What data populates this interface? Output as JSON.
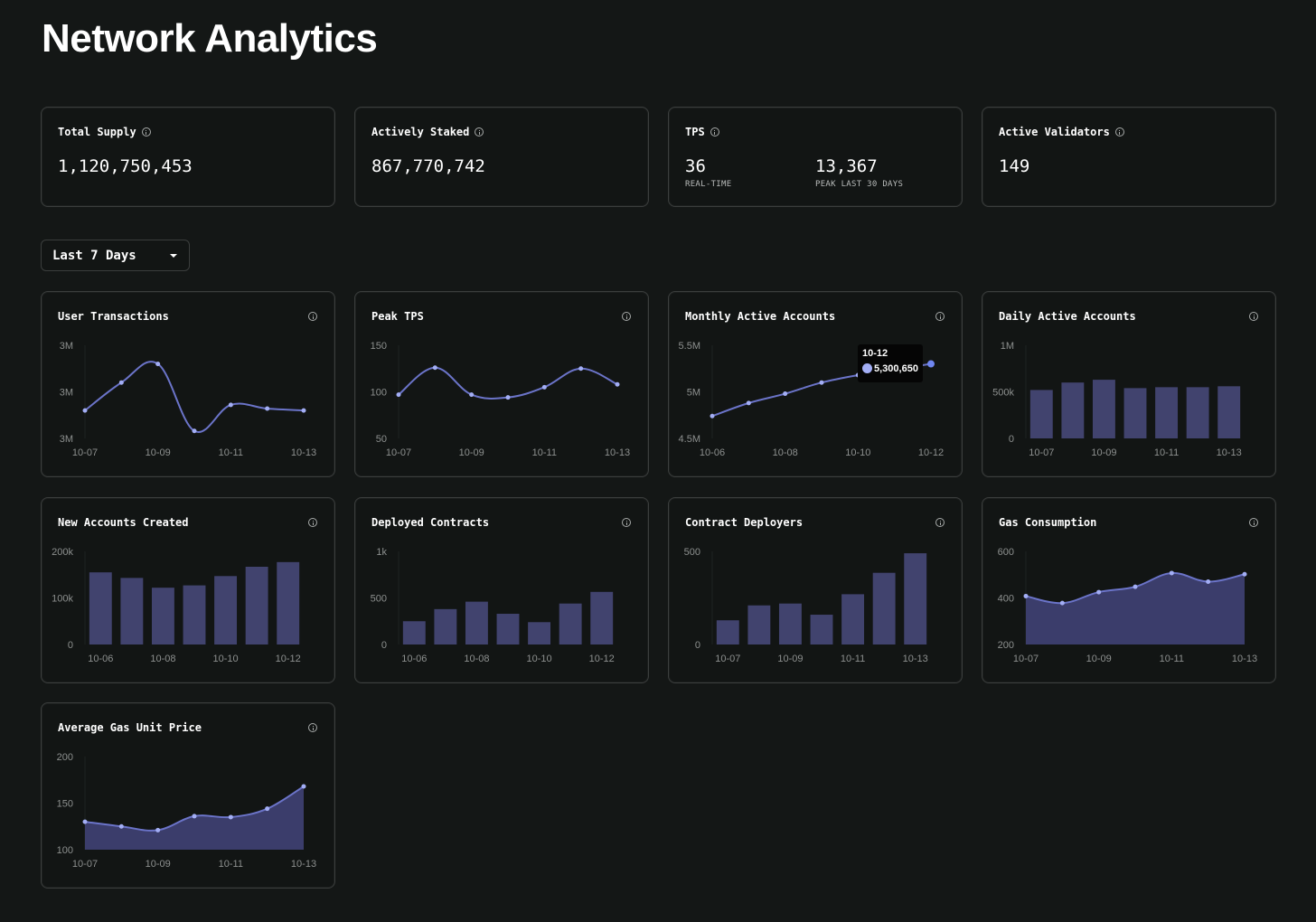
{
  "page": {
    "title": "Network Analytics"
  },
  "stats": {
    "total_supply": {
      "label": "Total Supply",
      "value": "1,120,750,453"
    },
    "actively_staked": {
      "label": "Actively Staked",
      "value": "867,770,742"
    },
    "tps": {
      "label": "TPS",
      "realtime_value": "36",
      "realtime_label": "REAL-TIME",
      "peak_value": "13,367",
      "peak_label": "PEAK LAST 30 DAYS"
    },
    "active_validators": {
      "label": "Active Validators",
      "value": "149"
    }
  },
  "range_selector": {
    "selected": "Last 7 Days"
  },
  "colors": {
    "line": "#6b74c9",
    "point": "#a3aef5",
    "bar": "#41436e",
    "area": "#3b3d6b"
  },
  "icons": {
    "info": "info-icon",
    "dropdown": "chevron-down-icon"
  },
  "tooltip": {
    "date": "10-12",
    "value": "5,300,650"
  },
  "chart_data": [
    {
      "id": "user_transactions",
      "title": "User Transactions",
      "type": "line",
      "x": [
        "10-07",
        "10-08",
        "10-09",
        "10-10",
        "10-11",
        "10-12",
        "10-13"
      ],
      "values": [
        2.9,
        3.05,
        3.15,
        2.79,
        2.93,
        2.91,
        2.9
      ],
      "ylim": [
        2.75,
        3.25
      ],
      "yticks": [
        3.25,
        3.0,
        2.75
      ],
      "ytick_labels": [
        "3M",
        "3M",
        "3M"
      ],
      "xtick_labels": [
        "10-07",
        "10-09",
        "10-11",
        "10-13"
      ]
    },
    {
      "id": "peak_tps",
      "title": "Peak TPS",
      "type": "line",
      "x": [
        "10-07",
        "10-08",
        "10-09",
        "10-10",
        "10-11",
        "10-12",
        "10-13"
      ],
      "values": [
        97,
        126,
        97,
        94,
        105,
        125,
        108
      ],
      "ylim": [
        50,
        150
      ],
      "yticks": [
        150,
        100,
        50
      ],
      "ytick_labels": [
        "150",
        "100",
        "50"
      ],
      "xtick_labels": [
        "10-07",
        "10-09",
        "10-11",
        "10-13"
      ]
    },
    {
      "id": "monthly_active_accounts",
      "title": "Monthly Active Accounts",
      "type": "line",
      "x": [
        "10-06",
        "10-07",
        "10-08",
        "10-09",
        "10-10",
        "10-11",
        "10-12"
      ],
      "values": [
        4.74,
        4.88,
        4.98,
        5.1,
        5.18,
        5.24,
        5.30065
      ],
      "ylim": [
        4.5,
        5.5
      ],
      "yticks": [
        5.5,
        5.0,
        4.5
      ],
      "ytick_labels": [
        "5.5M",
        "5M",
        "4.5M"
      ],
      "xtick_labels": [
        "10-06",
        "10-08",
        "10-10",
        "10-12"
      ]
    },
    {
      "id": "daily_active_accounts",
      "title": "Daily Active Accounts",
      "type": "bar",
      "x": [
        "10-07",
        "10-08",
        "10-09",
        "10-10",
        "10-11",
        "10-12",
        "10-13"
      ],
      "values": [
        520000,
        600000,
        630000,
        540000,
        550000,
        550000,
        560000
      ],
      "ylim": [
        0,
        1000000
      ],
      "yticks": [
        1000000,
        500000,
        0
      ],
      "ytick_labels": [
        "1M",
        "500k",
        "0"
      ],
      "xtick_labels": [
        "10-07",
        "10-09",
        "10-11",
        "10-13"
      ]
    },
    {
      "id": "new_accounts_created",
      "title": "New Accounts Created",
      "type": "bar",
      "x": [
        "10-06",
        "10-07",
        "10-08",
        "10-09",
        "10-10",
        "10-11",
        "10-12"
      ],
      "values": [
        155000,
        143000,
        122000,
        127000,
        147000,
        167000,
        177000
      ],
      "ylim": [
        0,
        200000
      ],
      "yticks": [
        200000,
        100000,
        0
      ],
      "ytick_labels": [
        "200k",
        "100k",
        "0"
      ],
      "xtick_labels": [
        "10-06",
        "10-08",
        "10-10",
        "10-12"
      ]
    },
    {
      "id": "deployed_contracts",
      "title": "Deployed Contracts",
      "type": "bar",
      "x": [
        "10-06",
        "10-07",
        "10-08",
        "10-09",
        "10-10",
        "10-11",
        "10-12"
      ],
      "values": [
        250,
        380,
        460,
        330,
        240,
        440,
        565
      ],
      "ylim": [
        0,
        1000
      ],
      "yticks": [
        1000,
        500,
        0
      ],
      "ytick_labels": [
        "1k",
        "500",
        "0"
      ],
      "xtick_labels": [
        "10-06",
        "10-08",
        "10-10",
        "10-12"
      ]
    },
    {
      "id": "contract_deployers",
      "title": "Contract Deployers",
      "type": "bar",
      "x": [
        "10-07",
        "10-08",
        "10-09",
        "10-10",
        "10-11",
        "10-12",
        "10-13"
      ],
      "values": [
        130,
        210,
        220,
        160,
        270,
        385,
        490
      ],
      "ylim": [
        0,
        500
      ],
      "yticks": [
        500,
        0
      ],
      "ytick_labels": [
        "500",
        "0"
      ],
      "xtick_labels": [
        "10-07",
        "10-09",
        "10-11",
        "10-13"
      ]
    },
    {
      "id": "gas_consumption",
      "title": "Gas Consumption",
      "type": "area",
      "x": [
        "10-07",
        "10-08",
        "10-09",
        "10-10",
        "10-11",
        "10-12",
        "10-13"
      ],
      "values": [
        408,
        378,
        425,
        448,
        507,
        470,
        502
      ],
      "ylim": [
        200,
        600
      ],
      "yticks": [
        600,
        400,
        200
      ],
      "ytick_labels": [
        "600",
        "400",
        "200"
      ],
      "xtick_labels": [
        "10-07",
        "10-09",
        "10-11",
        "10-13"
      ]
    },
    {
      "id": "average_gas_unit_price",
      "title": "Average Gas Unit Price",
      "type": "area",
      "x": [
        "10-07",
        "10-08",
        "10-09",
        "10-10",
        "10-11",
        "10-12",
        "10-13"
      ],
      "values": [
        130,
        125,
        121,
        136,
        135,
        144,
        168
      ],
      "ylim": [
        100,
        200
      ],
      "yticks": [
        200,
        150,
        100
      ],
      "ytick_labels": [
        "200",
        "150",
        "100"
      ],
      "xtick_labels": [
        "10-07",
        "10-09",
        "10-11",
        "10-13"
      ]
    }
  ]
}
